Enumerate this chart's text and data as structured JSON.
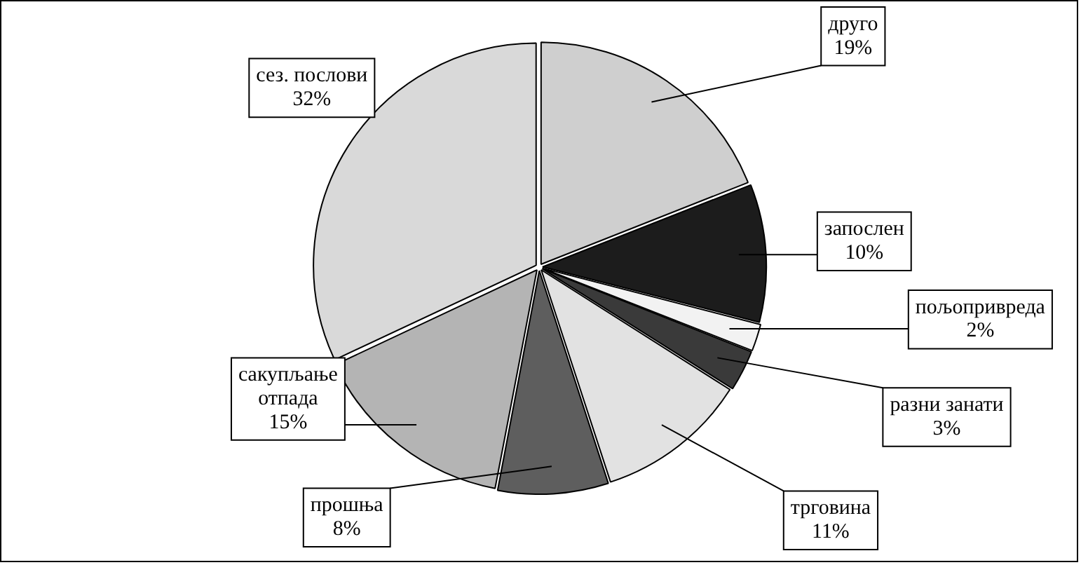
{
  "chart_data": {
    "type": "pie",
    "categories": [
      "друго",
      "запослен",
      "пољопривреда",
      "разни занати",
      "трговина",
      "прошња",
      "сакупљање отпада",
      "сез. послови"
    ],
    "values": [
      19,
      10,
      2,
      3,
      11,
      8,
      15,
      32
    ],
    "value_labels": [
      "19%",
      "10%",
      "2%",
      "3%",
      "11%",
      "8%",
      "15%",
      "32%"
    ],
    "colors": [
      "#cfcfcf",
      "#1c1c1c",
      "#f2f2f2",
      "#3a3a3a",
      "#e2e2e2",
      "#5e5e5e",
      "#b4b4b4",
      "#d9d9d9"
    ],
    "legend": false
  }
}
